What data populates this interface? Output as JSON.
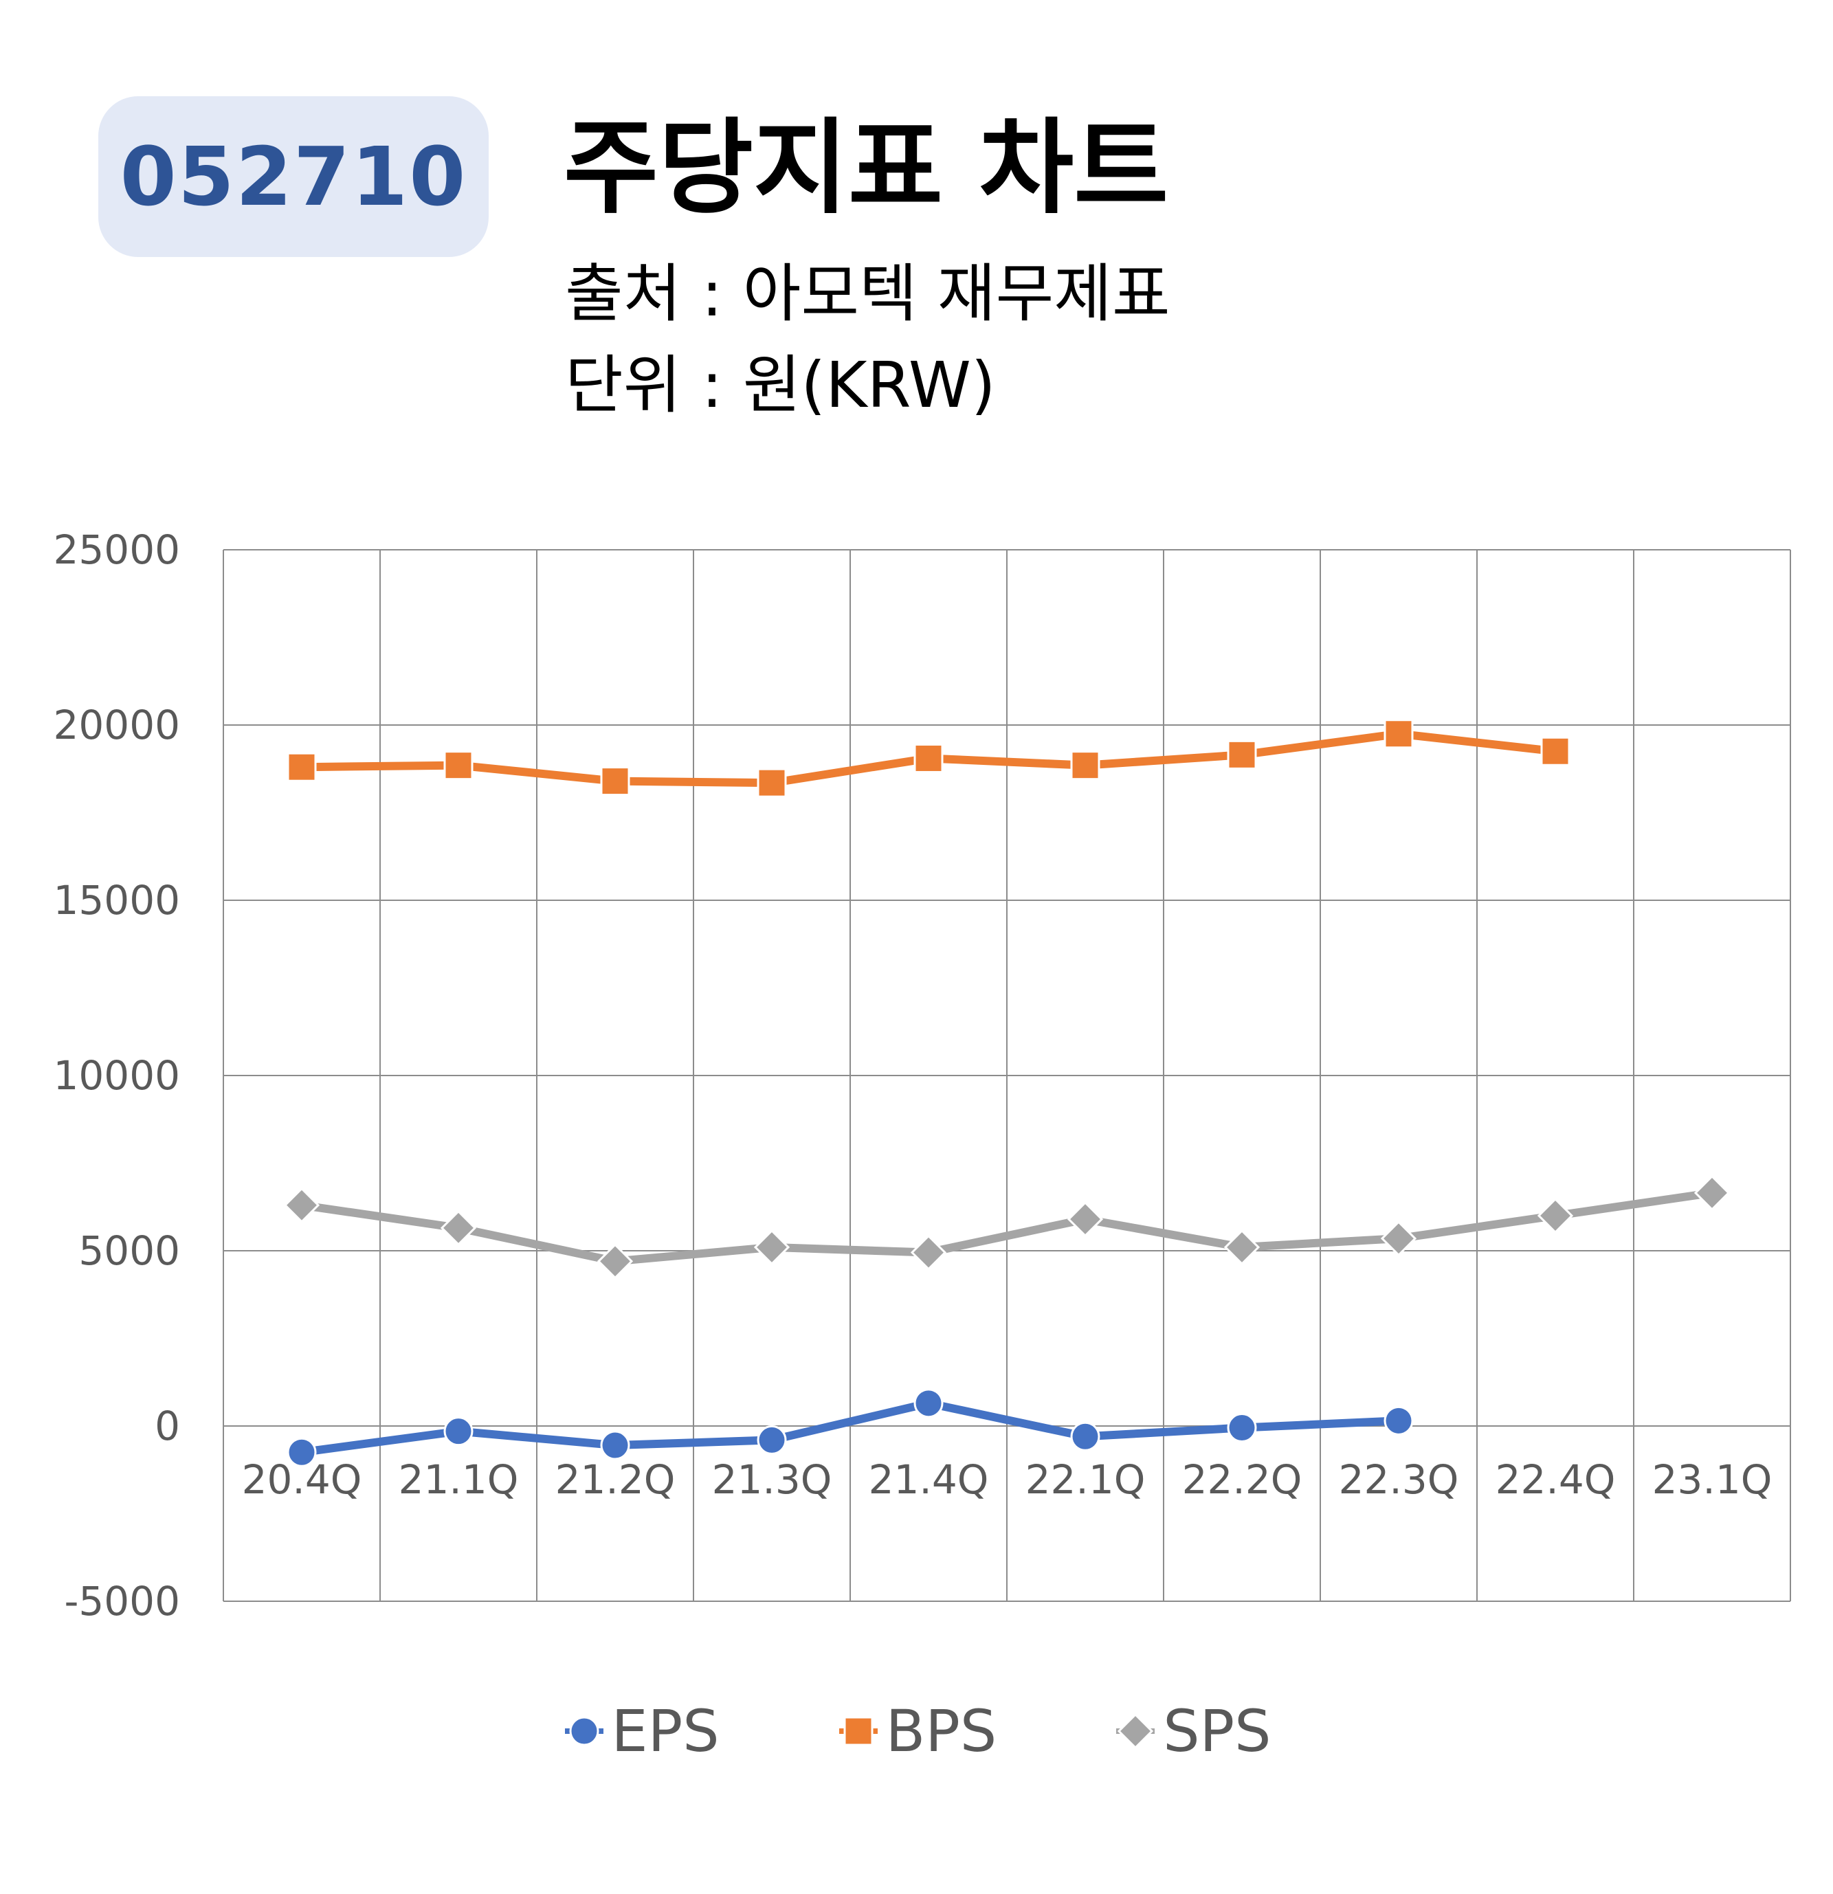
{
  "badge": "052710",
  "title": "주당지표 차트",
  "source": "출처 : 아모텍 재무제표",
  "unit": "단위 : 원(KRW)",
  "colors": {
    "EPS": "#4472c4",
    "BPS": "#ed7d31",
    "SPS": "#a5a5a5",
    "badge_bg": "#e3e9f6",
    "badge_text": "#2e5496"
  },
  "chart_data": {
    "type": "line",
    "categories": [
      "20.4Q",
      "21.1Q",
      "21.2Q",
      "21.3Q",
      "21.4Q",
      "22.1Q",
      "22.2Q",
      "22.3Q",
      "22.4Q",
      "23.1Q"
    ],
    "series": [
      {
        "name": "EPS",
        "marker": "circle",
        "values": [
          -750,
          -150,
          -550,
          -400,
          650,
          -300,
          -50,
          150,
          null,
          null
        ]
      },
      {
        "name": "BPS",
        "marker": "square",
        "values": [
          18800,
          18850,
          18400,
          18350,
          19050,
          18850,
          19150,
          19750,
          19250,
          null
        ]
      },
      {
        "name": "SPS",
        "marker": "diamond",
        "values": [
          6300,
          5650,
          4700,
          5100,
          4950,
          5900,
          5100,
          5350,
          6000,
          6650
        ]
      }
    ],
    "yticks": [
      25000,
      20000,
      15000,
      10000,
      5000,
      0,
      -5000
    ],
    "ylim": [
      -5000,
      25000
    ],
    "grid": true,
    "legend_position": "bottom"
  }
}
